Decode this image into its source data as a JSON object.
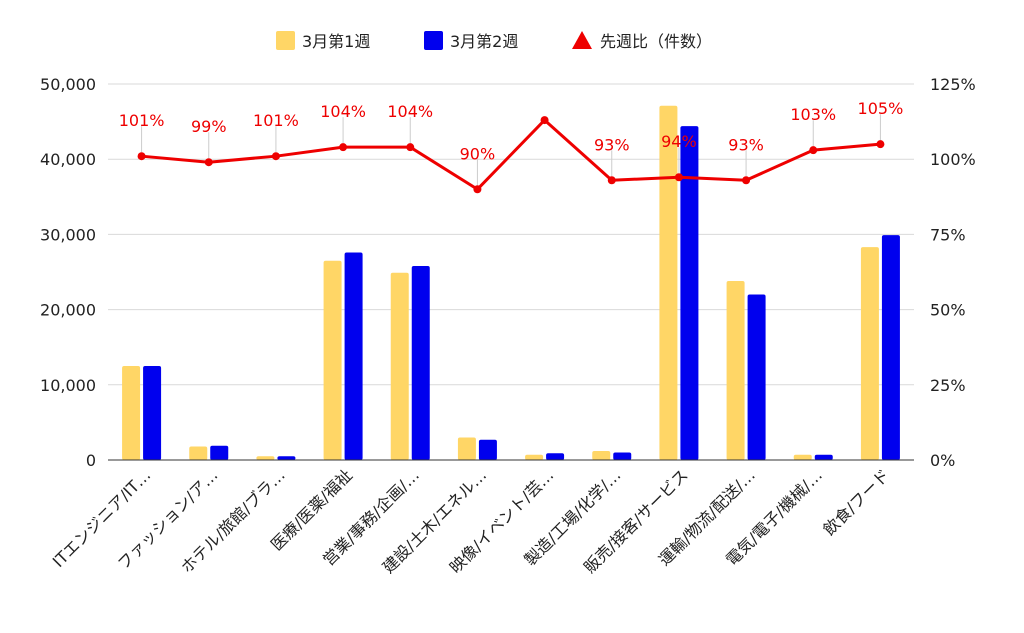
{
  "chart_data": {
    "type": "bar",
    "categories": [
      "ITエンジニア/IT…",
      "ファッション/ア…",
      "ホテル/旅館/ブラ…",
      "医療/医薬/福祉",
      "営業/事務/企画/…",
      "建設/土木/エネル…",
      "映像/イベント/芸…",
      "製造/工場/化学/…",
      "販売/接客/サービス",
      "運輸/物流/配送/…",
      "電気/電子/機械/…",
      "飲食/フード"
    ],
    "series": [
      {
        "name": "3月第1週",
        "kind": "bar",
        "axis": "left",
        "color": "#ffd666",
        "values": [
          12500,
          1800,
          500,
          26500,
          24900,
          3000,
          700,
          1200,
          47100,
          23800,
          700,
          28300
        ]
      },
      {
        "name": "3月第2週",
        "kind": "bar",
        "axis": "left",
        "color": "#0000ee",
        "values": [
          12500,
          1900,
          500,
          27600,
          25800,
          2700,
          900,
          1000,
          44400,
          22000,
          700,
          29900
        ]
      },
      {
        "name": "先週比（件数）",
        "kind": "line",
        "axis": "right",
        "color": "#ee0000",
        "values": [
          101,
          99,
          101,
          104,
          104,
          90,
          113,
          93,
          94,
          93,
          103,
          105
        ]
      }
    ],
    "line_labels": [
      "101%",
      "99%",
      "101%",
      "104%",
      "104%",
      "90%",
      "",
      "93%",
      "94%",
      "93%",
      "103%",
      "105%"
    ],
    "y_left": {
      "min": 0,
      "max": 50000,
      "ticks": [
        "0",
        "10,000",
        "20,000",
        "30,000",
        "40,000",
        "50,000"
      ]
    },
    "y_right": {
      "min": 0,
      "max": 125,
      "ticks": [
        "0%",
        "25%",
        "50%",
        "75%",
        "100%",
        "125%"
      ]
    },
    "legend_position": "top-center",
    "grid": true
  }
}
